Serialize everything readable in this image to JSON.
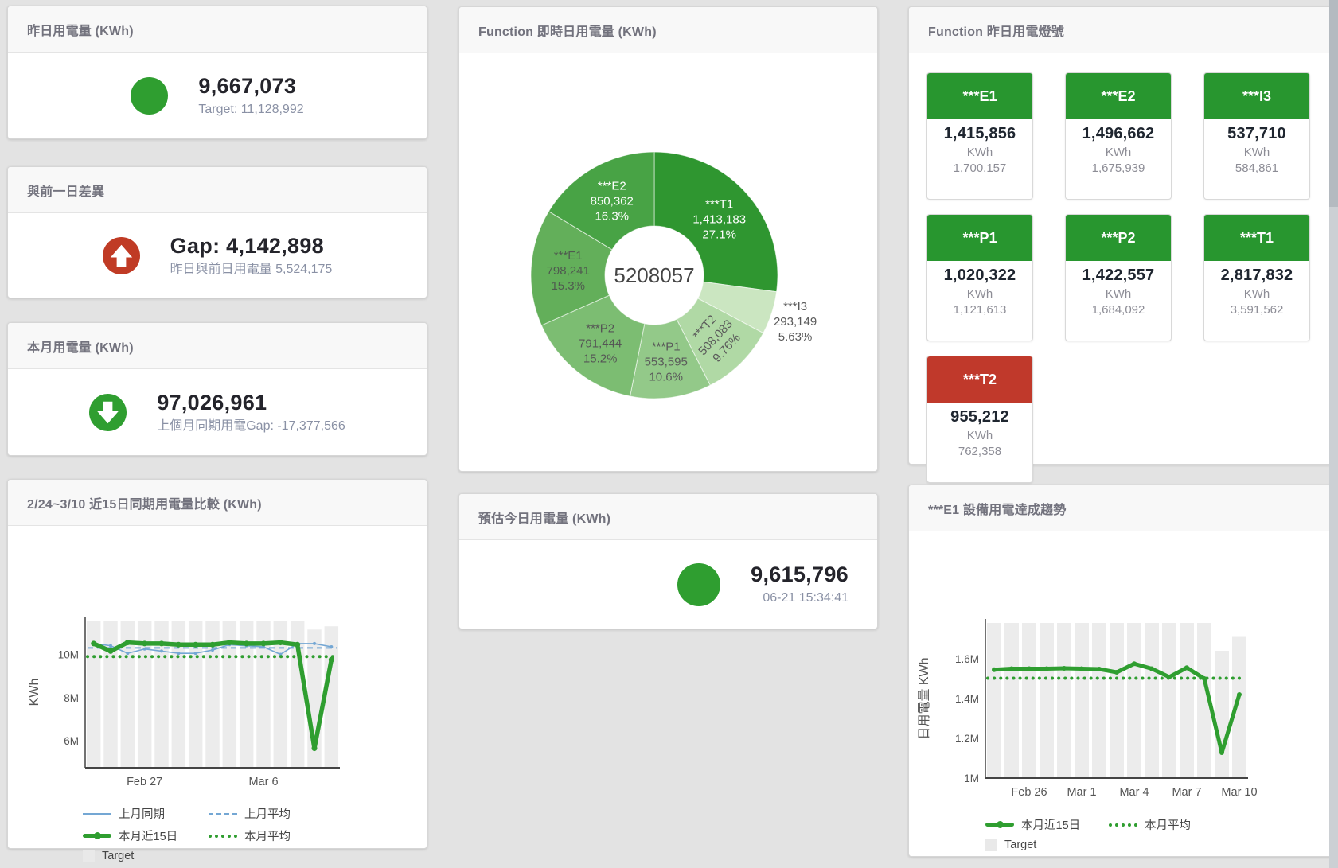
{
  "kpi_cards": [
    {
      "title": "昨日用電量 (KWh)",
      "indicator": "circle",
      "indicator_color": "#2f9e30",
      "value": "9,667,073",
      "subtitle": "Target: 11,128,992"
    },
    {
      "title": "與前一日差異",
      "indicator": "arrow-up",
      "indicator_color": "#c03b25",
      "value": "Gap: 4,142,898",
      "subtitle": "昨日與前日用電量 5,524,175"
    },
    {
      "title": "本月用電量 (KWh)",
      "indicator": "arrow-down",
      "indicator_color": "#2f9e30",
      "value": "97,026,961",
      "subtitle": "上個月同期用電Gap: -17,377,566"
    },
    {
      "title": "預估今日用電量 (KWh)",
      "indicator": "circle",
      "indicator_color": "#2f9e30",
      "value": "9,615,796",
      "subtitle": "06-21 15:34:41"
    }
  ],
  "tiles_card": {
    "title": "Function 昨日用電燈號",
    "tiles": [
      {
        "label": "***E1",
        "value": "1,415,856",
        "unit": "KWh",
        "target": "1,700,157",
        "status_color": "#28962f"
      },
      {
        "label": "***E2",
        "value": "1,496,662",
        "unit": "KWh",
        "target": "1,675,939",
        "status_color": "#28962f"
      },
      {
        "label": "***I3",
        "value": "537,710",
        "unit": "KWh",
        "target": "584,861",
        "status_color": "#28962f"
      },
      {
        "label": "***P1",
        "value": "1,020,322",
        "unit": "KWh",
        "target": "1,121,613",
        "status_color": "#28962f"
      },
      {
        "label": "***P2",
        "value": "1,422,557",
        "unit": "KWh",
        "target": "1,684,092",
        "status_color": "#28962f"
      },
      {
        "label": "***T1",
        "value": "2,817,832",
        "unit": "KWh",
        "target": "3,591,562",
        "status_color": "#28962f"
      },
      {
        "label": "***T2",
        "value": "955,212",
        "unit": "KWh",
        "target": "762,358",
        "status_color": "#c0392b"
      }
    ]
  },
  "chart_data": [
    {
      "id": "donut",
      "type": "pie",
      "title": "Function 即時日用電量 (KWh)",
      "center_label": "5208057",
      "hole_ratio": 0.4,
      "slices": [
        {
          "name": "***T1",
          "value": 1413183,
          "value_label": "1,413,183",
          "pct_label": "27.1%",
          "color": "#2f9630",
          "label_color": "#ffffff",
          "label_pos": "inside",
          "rotate": 0
        },
        {
          "name": "***I3",
          "value": 293149,
          "value_label": "293,149",
          "pct_label": "5.63%",
          "color": "#cbe6c1",
          "label_color": "#5a5a5a",
          "label_pos": "outside",
          "rotate": 0
        },
        {
          "name": "***T2",
          "value": 508083,
          "value_label": "508,083",
          "pct_label": "9.76%",
          "color": "#b0d9a5",
          "label_color": "#5a5a5a",
          "label_pos": "inside",
          "rotate": -47
        },
        {
          "name": "***P1",
          "value": 553595,
          "value_label": "553,595",
          "pct_label": "10.6%",
          "color": "#93c989",
          "label_color": "#5a5a5a",
          "label_pos": "inside",
          "rotate": 0
        },
        {
          "name": "***P2",
          "value": 791444,
          "value_label": "791,444",
          "pct_label": "15.2%",
          "color": "#7cbd72",
          "label_color": "#555555",
          "label_pos": "inside",
          "rotate": 0
        },
        {
          "name": "***E1",
          "value": 798241,
          "value_label": "798,241",
          "pct_label": "15.3%",
          "color": "#63af5a",
          "label_color": "#4f5b4f",
          "label_pos": "inside",
          "rotate": 0
        },
        {
          "name": "***E2",
          "value": 850362,
          "value_label": "850,362",
          "pct_label": "16.3%",
          "color": "#48a345",
          "label_color": "#ffffff",
          "label_pos": "inside",
          "rotate": 0
        }
      ]
    },
    {
      "id": "compare15",
      "type": "line",
      "title": "2/24~3/10 近15日同期用電量比較 (KWh)",
      "ylabel": "KWh",
      "ylim": [
        4750000,
        11750000
      ],
      "yticks": [
        {
          "v": 6000000,
          "label": "6M"
        },
        {
          "v": 8000000,
          "label": "8M"
        },
        {
          "v": 10000000,
          "label": "10M"
        }
      ],
      "xticks": [
        {
          "i": 3,
          "label": "Feb 27"
        },
        {
          "i": 10,
          "label": "Mar 6"
        }
      ],
      "target_bars": [
        11550000,
        11550000,
        11550000,
        11550000,
        11550000,
        11550000,
        11550000,
        11550000,
        11550000,
        11550000,
        11550000,
        11550000,
        11550000,
        11150000,
        11300000
      ],
      "series": [
        {
          "name": "上月同期",
          "color": "#74a7d4",
          "width": 1.6,
          "dash": "solid",
          "marker": 2,
          "values": [
            10500000,
            10400000,
            10050000,
            10250000,
            10150000,
            10050000,
            10050000,
            10200000,
            10450000,
            10400000,
            10350000,
            10000000,
            10500000,
            10500000,
            10350000
          ]
        },
        {
          "name": "上月平均",
          "color": "#74a7d4",
          "width": 2,
          "dash": "dashed",
          "constant": 10300000
        },
        {
          "name": "本月近15日",
          "color": "#2f9e30",
          "width": 5.5,
          "dash": "solid",
          "marker": 3.5,
          "values": [
            10500000,
            10150000,
            10550000,
            10500000,
            10500000,
            10450000,
            10450000,
            10450000,
            10550000,
            10500000,
            10500000,
            10550000,
            10450000,
            5650000,
            9750000
          ]
        },
        {
          "name": "本月平均",
          "color": "#2f9e30",
          "width": 4,
          "dash": "dotted",
          "constant": 9900000
        }
      ],
      "legend": [
        [
          "上月同期",
          "上月平均"
        ],
        [
          "本月近15日",
          "本月平均"
        ],
        [
          "Target"
        ]
      ],
      "target_legend_label": "Target"
    },
    {
      "id": "e1trend",
      "type": "line",
      "title": "***E1 設備用電達成趨勢",
      "ylabel": "日用電量 KWh",
      "ylim": [
        1000000,
        1800000
      ],
      "yticks": [
        {
          "v": 1000000,
          "label": "1M"
        },
        {
          "v": 1200000,
          "label": "1.2M"
        },
        {
          "v": 1400000,
          "label": "1.4M"
        },
        {
          "v": 1600000,
          "label": "1.6M"
        }
      ],
      "xticks": [
        {
          "i": 2,
          "label": "Feb 26"
        },
        {
          "i": 5,
          "label": "Mar 1"
        },
        {
          "i": 8,
          "label": "Mar 4"
        },
        {
          "i": 11,
          "label": "Mar 7"
        },
        {
          "i": 14,
          "label": "Mar 10"
        }
      ],
      "target_bars": [
        1780000,
        1780000,
        1780000,
        1780000,
        1780000,
        1780000,
        1780000,
        1780000,
        1780000,
        1780000,
        1780000,
        1780000,
        1780000,
        1640000,
        1710000
      ],
      "series": [
        {
          "name": "本月近15日",
          "color": "#2f9e30",
          "width": 5,
          "dash": "solid",
          "marker": 3,
          "values": [
            1545000,
            1550000,
            1550000,
            1550000,
            1552000,
            1550000,
            1548000,
            1532000,
            1575000,
            1550000,
            1508000,
            1555000,
            1500000,
            1128000,
            1420000
          ]
        },
        {
          "name": "本月平均",
          "color": "#2f9e30",
          "width": 4,
          "dash": "dotted",
          "constant": 1502000
        }
      ],
      "legend": [
        [
          "本月近15日",
          "本月平均"
        ],
        [
          "Target"
        ]
      ],
      "target_legend_label": "Target"
    }
  ]
}
